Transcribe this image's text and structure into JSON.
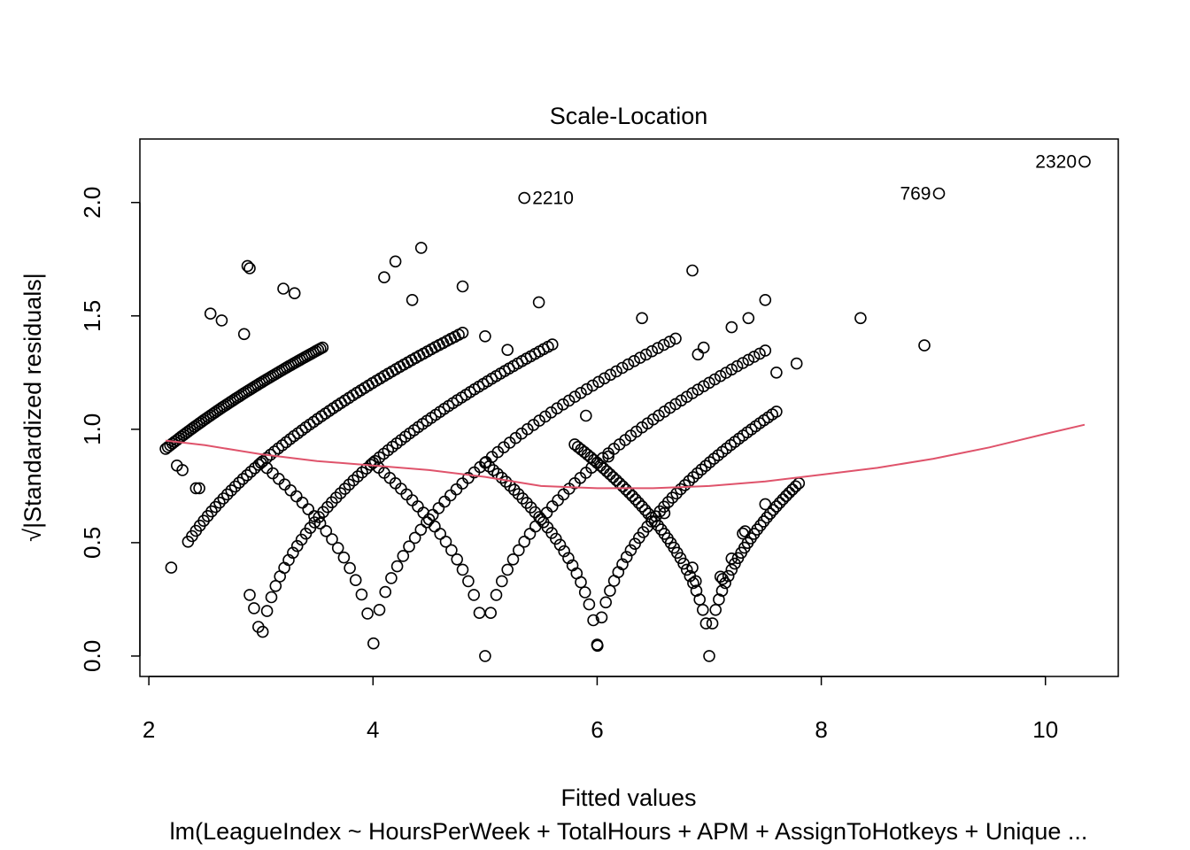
{
  "chart_data": {
    "type": "scatter",
    "title": "Scale-Location",
    "xlabel": "Fitted values",
    "ylabel": "√|Standardized residuals|",
    "subtitle": "lm(LeagueIndex ~ HoursPerWeek + TotalHours + APM + AssignToHotkeys + Unique ...",
    "xlim": [
      1.92,
      10.65
    ],
    "ylim": [
      -0.09,
      2.28
    ],
    "x_ticks": [
      "2",
      "4",
      "6",
      "8",
      "10"
    ],
    "x_tick_values": [
      2,
      4,
      6,
      8,
      10
    ],
    "y_ticks": [
      "0.0",
      "0.5",
      "1.0",
      "1.5",
      "2.0"
    ],
    "y_tick_values": [
      0.0,
      0.5,
      1.0,
      1.5,
      2.0
    ],
    "grid": false,
    "point_style": "open-circle",
    "smooth_color": "#DF536B",
    "residual_scale": 0.726,
    "league_levels": [
      1,
      2,
      3,
      4,
      5,
      6,
      7
    ],
    "level_fit_ranges": [
      [
        2.15,
        3.55
      ],
      [
        2.35,
        4.8
      ],
      [
        2.9,
        5.6
      ],
      [
        3.0,
        6.7
      ],
      [
        4.0,
        7.5
      ],
      [
        5.0,
        7.6
      ],
      [
        5.8,
        7.8
      ]
    ],
    "smooth": {
      "x": [
        2.15,
        2.5,
        3.0,
        3.5,
        4.0,
        4.5,
        5.0,
        5.5,
        6.0,
        6.5,
        7.0,
        7.5,
        8.0,
        8.5,
        9.0,
        9.5,
        10.0,
        10.35
      ],
      "y": [
        0.95,
        0.93,
        0.89,
        0.86,
        0.84,
        0.82,
        0.79,
        0.75,
        0.74,
        0.74,
        0.75,
        0.77,
        0.8,
        0.83,
        0.87,
        0.92,
        0.98,
        1.02
      ]
    },
    "outliers": [
      {
        "x": 10.35,
        "y": 2.18,
        "label": "2320",
        "side": "left"
      },
      {
        "x": 9.05,
        "y": 2.04,
        "label": "769",
        "side": "left"
      },
      {
        "x": 5.35,
        "y": 2.02,
        "label": "2210",
        "side": "right"
      }
    ],
    "extra_points": [
      {
        "x": 2.88,
        "y": 1.72
      },
      {
        "x": 2.9,
        "y": 1.71
      },
      {
        "x": 3.2,
        "y": 1.62
      },
      {
        "x": 3.3,
        "y": 1.6
      },
      {
        "x": 4.1,
        "y": 1.67
      },
      {
        "x": 4.2,
        "y": 1.74
      },
      {
        "x": 4.43,
        "y": 1.8
      },
      {
        "x": 4.35,
        "y": 1.57
      },
      {
        "x": 4.8,
        "y": 1.63
      },
      {
        "x": 5.0,
        "y": 1.41
      },
      {
        "x": 5.2,
        "y": 1.35
      },
      {
        "x": 5.48,
        "y": 1.56
      },
      {
        "x": 6.1,
        "y": 0.88
      },
      {
        "x": 6.4,
        "y": 1.49
      },
      {
        "x": 6.85,
        "y": 1.7
      },
      {
        "x": 6.9,
        "y": 1.33
      },
      {
        "x": 6.95,
        "y": 1.36
      },
      {
        "x": 7.2,
        "y": 1.45
      },
      {
        "x": 7.35,
        "y": 1.49
      },
      {
        "x": 7.5,
        "y": 1.57
      },
      {
        "x": 7.6,
        "y": 1.25
      },
      {
        "x": 7.78,
        "y": 1.29
      },
      {
        "x": 8.35,
        "y": 1.49
      },
      {
        "x": 8.92,
        "y": 1.37
      },
      {
        "x": 7.5,
        "y": 0.67
      },
      {
        "x": 7.32,
        "y": 0.55
      },
      {
        "x": 7.3,
        "y": 0.54
      },
      {
        "x": 7.2,
        "y": 0.43
      },
      {
        "x": 7.12,
        "y": 0.34
      },
      {
        "x": 7.1,
        "y": 0.35
      },
      {
        "x": 6.85,
        "y": 0.39
      },
      {
        "x": 6.88,
        "y": 0.33
      },
      {
        "x": 2.2,
        "y": 0.39
      },
      {
        "x": 2.25,
        "y": 0.84
      },
      {
        "x": 2.3,
        "y": 0.82
      },
      {
        "x": 2.42,
        "y": 0.74
      },
      {
        "x": 2.45,
        "y": 0.74
      },
      {
        "x": 2.55,
        "y": 1.51
      },
      {
        "x": 2.65,
        "y": 1.48
      },
      {
        "x": 2.85,
        "y": 1.42
      },
      {
        "x": 6.0,
        "y": 0.05
      },
      {
        "x": 5.9,
        "y": 1.06
      },
      {
        "x": 6.6,
        "y": 0.63
      }
    ]
  }
}
